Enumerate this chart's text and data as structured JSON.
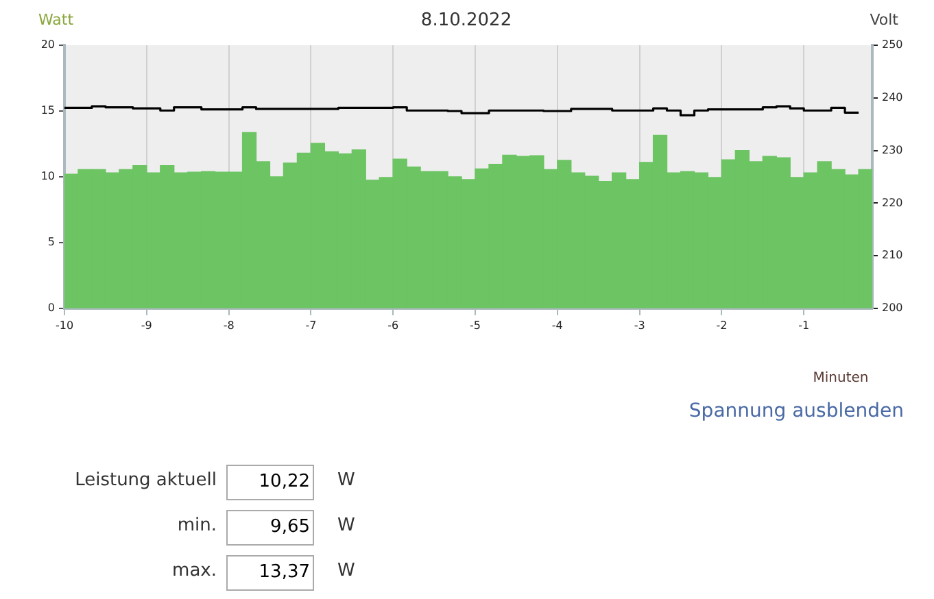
{
  "chart_data": {
    "type": "histogram",
    "title": "8.10.2022",
    "ylabel": "Watt",
    "y2label": "Volt",
    "xlabel": "Minuten",
    "bins": [
      -10,
      -9.833,
      -9.667,
      -9.5,
      -9.333,
      -9.167,
      -9,
      -8.833,
      -8.667,
      -8.5,
      -8.333,
      -8.167,
      -8,
      -7.833,
      -7.667,
      -7.5,
      -7.333,
      -7.167,
      -7,
      -6.833,
      -6.667,
      -6.5,
      -6.333,
      -6.167,
      -6,
      -5.833,
      -5.667,
      -5.5,
      -5.333,
      -5.167,
      -5,
      -4.833,
      -4.667,
      -4.5,
      -4.333,
      -4.167,
      -4,
      -3.833,
      -3.667,
      -3.5,
      -3.333,
      -3.167,
      -3,
      -2.833,
      -2.667,
      -2.5,
      -2.333,
      -2.167,
      -2,
      -1.833,
      -1.667,
      -1.5,
      -1.333,
      -1.167,
      -1,
      -0.833,
      -0.667,
      -0.5,
      -0.333,
      -0.167
    ],
    "series": [
      {
        "color": "#6cc463",
        "values": [
          10.2,
          10.55,
          10.55,
          10.3,
          10.55,
          10.85,
          10.3,
          10.85,
          10.3,
          10.35,
          10.4,
          10.35,
          10.35,
          13.37,
          11.15,
          10.0,
          11.05,
          11.8,
          12.55,
          11.9,
          11.75,
          12.05,
          9.75,
          9.95,
          11.35,
          10.75,
          10.4,
          10.4,
          10.0,
          9.8,
          10.6,
          10.95,
          11.65,
          11.55,
          11.6,
          10.55,
          11.25,
          10.3,
          10.05,
          9.65,
          10.3,
          9.8,
          11.1,
          13.15,
          10.3,
          10.4,
          10.3,
          9.95,
          11.3,
          12.0,
          11.15,
          11.55,
          11.45,
          9.95,
          10.3,
          11.15,
          10.55,
          10.15,
          10.55
        ]
      },
      {
        "type": "step",
        "axis": "y2",
        "color": "#000000",
        "x": [
          -10,
          -9.833,
          -9.667,
          -9.5,
          -9.333,
          -9.167,
          -9,
          -8.833,
          -8.667,
          -8.5,
          -8.333,
          -8.167,
          -8,
          -7.833,
          -7.667,
          -7.5,
          -7.333,
          -7.167,
          -7,
          -6.833,
          -6.667,
          -6.5,
          -6.333,
          -6.167,
          -6,
          -5.833,
          -5.667,
          -5.5,
          -5.333,
          -5.167,
          -5,
          -4.833,
          -4.667,
          -4.5,
          -4.333,
          -4.167,
          -4,
          -3.833,
          -3.667,
          -3.5,
          -3.333,
          -3.167,
          -3,
          -2.833,
          -2.667,
          -2.5,
          -2.333,
          -2.167,
          -2,
          -1.833,
          -1.667,
          -1.5,
          -1.333,
          -1.167,
          -1,
          -0.833,
          -0.667,
          -0.5,
          -0.333
        ],
        "values": [
          238.1,
          238.1,
          238.4,
          238.2,
          238.2,
          238.0,
          238.0,
          237.6,
          238.2,
          238.2,
          237.8,
          237.8,
          237.8,
          238.2,
          237.9,
          237.9,
          237.9,
          237.9,
          237.9,
          237.9,
          238.1,
          238.1,
          238.1,
          238.1,
          238.2,
          237.6,
          237.6,
          237.6,
          237.5,
          237.1,
          237.1,
          237.6,
          237.6,
          237.6,
          237.6,
          237.5,
          237.5,
          237.9,
          237.9,
          237.9,
          237.6,
          237.6,
          237.6,
          238.0,
          237.6,
          236.7,
          237.6,
          237.8,
          237.8,
          237.8,
          237.8,
          238.2,
          238.4,
          238.0,
          237.6,
          237.6,
          238.1,
          237.2,
          237.2
        ]
      }
    ],
    "xlim": [
      -10,
      -0.167
    ],
    "xticks": [
      -10,
      -9,
      -8,
      -7,
      -6,
      -5,
      -4,
      -3,
      -2,
      -1
    ],
    "ylim": [
      0,
      20
    ],
    "yticks": [
      0,
      5,
      10,
      15,
      20
    ],
    "y2lim": [
      200,
      250
    ],
    "y2ticks": [
      200,
      210,
      220,
      230,
      240,
      250
    ],
    "grid": "x",
    "legend": false,
    "annotations": [
      "Spannung ausblenden",
      "Leistung aktuell",
      "10,22",
      "W",
      "min.",
      "9,65",
      "W",
      "max.",
      "13,37",
      "W"
    ]
  }
}
